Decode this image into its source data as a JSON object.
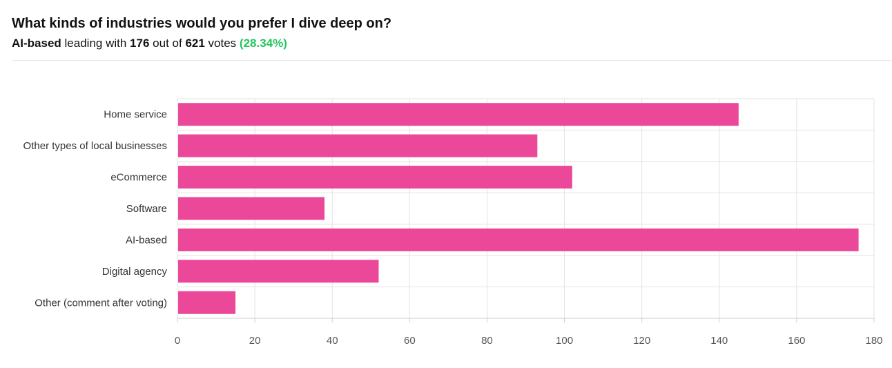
{
  "header": {
    "title": "What kinds of industries would you prefer I dive deep on?",
    "leader": "AI-based",
    "leading_with_text": "leading with",
    "leader_votes": "176",
    "out_of_text": "out of",
    "total_votes": "621",
    "votes_text": "votes",
    "percent": "(28.34%)"
  },
  "colors": {
    "bar": "#ec4899",
    "grid": "#e3e3e3",
    "percent": "#22c55e"
  },
  "chart_data": {
    "type": "bar",
    "orientation": "horizontal",
    "categories": [
      "Home service",
      "Other types of local businesses",
      "eCommerce",
      "Software",
      "AI-based",
      "Digital agency",
      "Other (comment after voting)"
    ],
    "values": [
      145,
      93,
      102,
      38,
      176,
      52,
      15
    ],
    "xlim": [
      0,
      180
    ],
    "xticks": [
      0,
      20,
      40,
      60,
      80,
      100,
      120,
      140,
      160,
      180
    ],
    "grid": true
  }
}
